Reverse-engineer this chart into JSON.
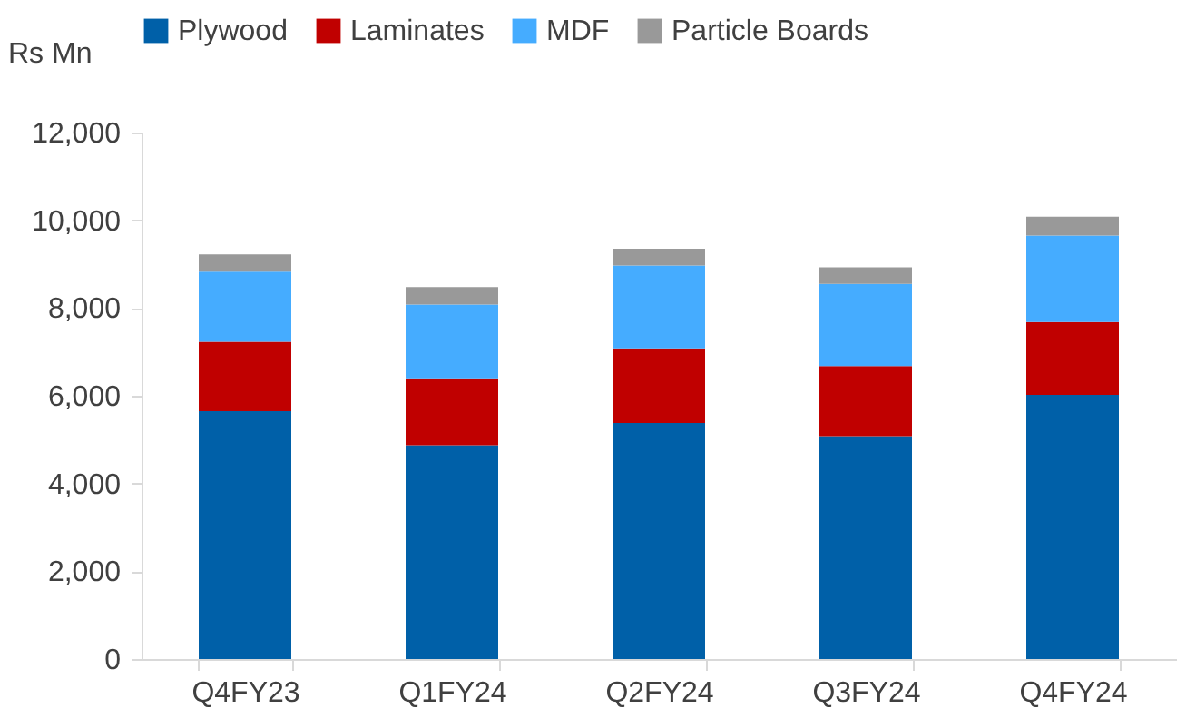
{
  "chart_data": {
    "type": "bar",
    "stacked": true,
    "ylabel": "Rs Mn",
    "categories": [
      "Q4FY23",
      "Q1FY24",
      "Q2FY24",
      "Q3FY24",
      "Q4FY24"
    ],
    "series": [
      {
        "name": "Plywood",
        "color": "#0060a8",
        "values": [
          5650,
          4870,
          5380,
          5080,
          6020
        ]
      },
      {
        "name": "Laminates",
        "color": "#c00000",
        "values": [
          1580,
          1530,
          1700,
          1600,
          1660
        ]
      },
      {
        "name": "MDF",
        "color": "#45acff",
        "values": [
          1600,
          1680,
          1890,
          1870,
          1970
        ]
      },
      {
        "name": "Particle Boards",
        "color": "#999999",
        "values": [
          390,
          400,
          380,
          380,
          430
        ]
      }
    ],
    "ylim": [
      0,
      12000
    ],
    "yticks": [
      0,
      {
        "value": 2000,
        "label": "2,000"
      },
      {
        "value": 4000,
        "label": "4,000"
      },
      {
        "value": 6000,
        "label": "6,000"
      },
      {
        "value": 8000,
        "label": "8,000"
      },
      {
        "value": 10000,
        "label": "10,000"
      },
      {
        "value": 12000,
        "label": "12,000"
      }
    ],
    "grid": false,
    "legend": "top"
  }
}
